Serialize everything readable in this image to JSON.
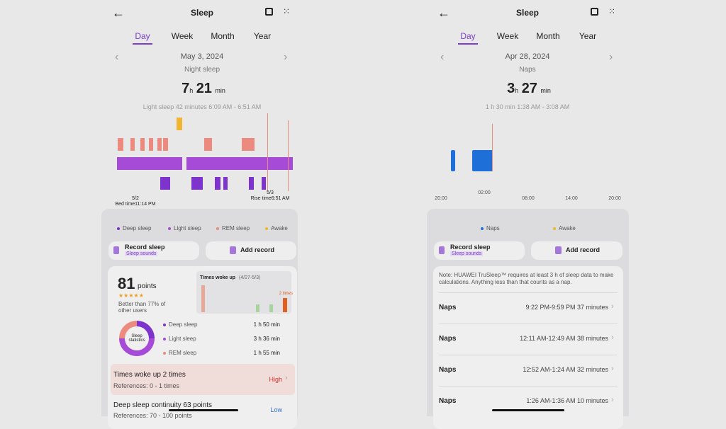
{
  "left": {
    "header": {
      "title": "Sleep"
    },
    "tabs": [
      "Day",
      "Week",
      "Month",
      "Year"
    ],
    "date": "May 3, 2024",
    "sleep_type": "Night sleep",
    "duration": {
      "hours": 7,
      "h": "h",
      "minutes": 21,
      "min": "min"
    },
    "detail": "Light sleep 42 minutes 6:09 AM - 6:51 AM",
    "chart": {
      "start_date": "5/2",
      "start_label": "Bed time11:14 PM",
      "end_date": "5/3",
      "end_label": "Rise time6:51 AM"
    },
    "legend": [
      "Deep sleep",
      "Light sleep",
      "REM sleep",
      "Awake"
    ],
    "actions": {
      "record": "Record sleep",
      "record_sub": "Sleep sounds",
      "add": "Add record"
    },
    "score": {
      "value": 81,
      "unit": "points",
      "comparison": "Better than 77% of other users"
    },
    "woke_chart": {
      "title": "Times woke up",
      "range": "(4/27-5/3)",
      "label": "2 times"
    },
    "donut_label": "Sleep statistics",
    "stats": [
      {
        "name": "Deep sleep",
        "value": "1 h 50 min"
      },
      {
        "name": "Light sleep",
        "value": "3 h 36 min"
      },
      {
        "name": "REM sleep",
        "value": "1 h 55 min"
      }
    ],
    "insights": [
      {
        "title": "Times woke up 2 times",
        "reference": "References: 0 - 1 times",
        "level": "High"
      },
      {
        "title": "Deep sleep continuity 63 points",
        "reference": "References: 70 - 100 points",
        "level": "Low"
      }
    ]
  },
  "right": {
    "header": {
      "title": "Sleep"
    },
    "tabs": [
      "Day",
      "Week",
      "Month",
      "Year"
    ],
    "date": "Apr 28, 2024",
    "sleep_type": "Naps",
    "duration": {
      "hours": 3,
      "h": "h",
      "minutes": 27,
      "min": "min"
    },
    "detail": "1 h 30 min 1:38 AM - 3:08 AM",
    "axis": [
      "20:00",
      "02:00",
      "08:00",
      "14:00",
      "20:00"
    ],
    "legend": [
      "Naps",
      "Awake"
    ],
    "actions": {
      "record": "Record sleep",
      "record_sub": "Sleep sounds",
      "add": "Add record"
    },
    "note": "Note: HUAWEI TruSleep™ requires at least 3 h of sleep data to make calculations. Anything less than that counts as a nap.",
    "naps": [
      {
        "label": "Naps",
        "detail": "9:22 PM-9:59 PM 37 minutes"
      },
      {
        "label": "Naps",
        "detail": "12:11 AM-12:49 AM 38 minutes"
      },
      {
        "label": "Naps",
        "detail": "12:52 AM-1:24 AM 32 minutes"
      },
      {
        "label": "Naps",
        "detail": "1:26 AM-1:36 AM 10 minutes"
      }
    ]
  }
}
